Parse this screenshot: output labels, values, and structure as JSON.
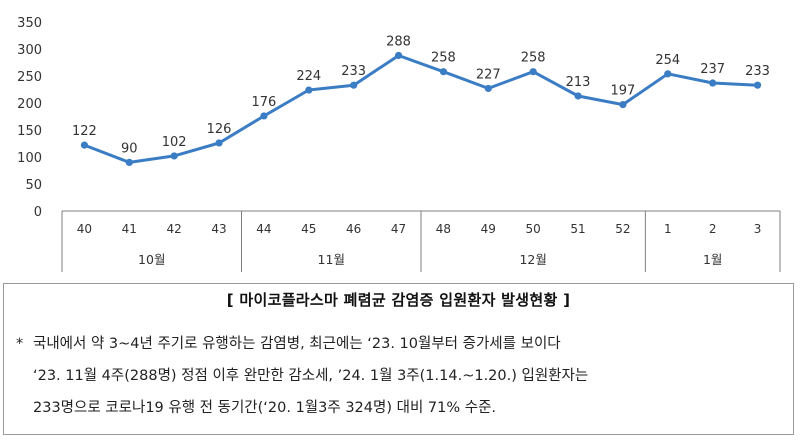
{
  "chart_data": {
    "type": "line",
    "title": "",
    "x": [
      "40",
      "41",
      "42",
      "43",
      "44",
      "45",
      "46",
      "47",
      "48",
      "49",
      "50",
      "51",
      "52",
      "1",
      "2",
      "3"
    ],
    "groups": [
      {
        "label": "10월",
        "span": 4
      },
      {
        "label": "11월",
        "span": 4
      },
      {
        "label": "12월",
        "span": 5
      },
      {
        "label": "1월",
        "span": 3
      }
    ],
    "series": [
      {
        "values": [
          122,
          90,
          102,
          126,
          176,
          224,
          233,
          288,
          258,
          227,
          258,
          213,
          197,
          254,
          237,
          233
        ]
      }
    ],
    "data_labels": [
      "122",
      "90",
      "102",
      "126",
      "176",
      "224",
      "233",
      "288",
      "258",
      "227",
      "258",
      "213",
      "197",
      "254",
      "237",
      "233"
    ],
    "ylim": [
      0,
      350
    ],
    "yticks": [
      0,
      50,
      100,
      150,
      200,
      250,
      300,
      350
    ],
    "line_color": "#3b7dc4",
    "grid": false,
    "legend": "none"
  },
  "caption": {
    "title": "[ 마이코플라스마 폐렴균 감염증 입원환자 발생현황 ]",
    "note_mark": "*",
    "note_lines": [
      "국내에서 약 3~4년 주기로 유행하는 감염병, 최근에는 ‘23. 10월부터 증가세를 보이다",
      "‘23. 11월 4주(288명) 정점 이후 완만한 감소세, ’24. 1월 3주(1.14.~1.20.) 입원환자는",
      "233명으로 코로나19 유행 전 동기간(‘20. 1월3주 324명) 대비 71% 수준."
    ]
  }
}
